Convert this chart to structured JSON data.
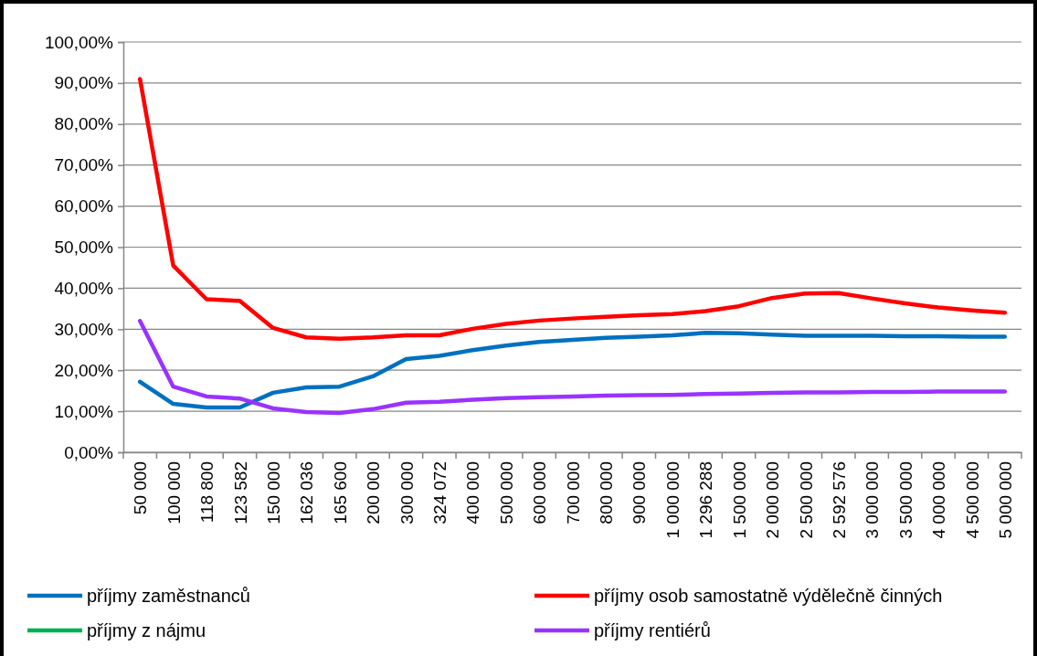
{
  "chart_data": {
    "type": "line",
    "categories": [
      "50 000",
      "100 000",
      "118 800",
      "123 582",
      "150 000",
      "162 036",
      "165 600",
      "200 000",
      "300 000",
      "324 072",
      "400 000",
      "500 000",
      "600 000",
      "700 000",
      "800 000",
      "900 000",
      "1 000 000",
      "1 296 288",
      "1 500 000",
      "2 000 000",
      "2 500 000",
      "2 592 576",
      "3 000 000",
      "3 500 000",
      "4 000 000",
      "4 500 000",
      "5 000 000"
    ],
    "series": [
      {
        "name": "příjmy zaměstnanců",
        "color": "#0070c0",
        "values": [
          17.2,
          11.8,
          10.9,
          10.9,
          14.5,
          15.8,
          16.0,
          18.5,
          22.7,
          23.5,
          24.9,
          26.0,
          26.9,
          27.4,
          27.9,
          28.2,
          28.5,
          29.1,
          29.0,
          28.7,
          28.4,
          28.4,
          28.4,
          28.3,
          28.3,
          28.2,
          28.2
        ]
      },
      {
        "name": "příjmy osob samostatně výdělečně činných",
        "color": "#ff0000",
        "values": [
          91.0,
          45.5,
          37.3,
          36.9,
          30.3,
          28.0,
          27.7,
          28.0,
          28.5,
          28.5,
          30.1,
          31.3,
          32.1,
          32.6,
          33.0,
          33.4,
          33.7,
          34.4,
          35.6,
          37.6,
          38.7,
          38.8,
          37.5,
          36.3,
          35.3,
          34.6,
          34.0
        ]
      },
      {
        "name": "příjmy z nájmu",
        "color": "#00b050",
        "values": [
          null,
          null,
          null,
          null,
          null,
          null,
          null,
          null,
          null,
          null,
          null,
          null,
          null,
          null,
          null,
          null,
          null,
          null,
          null,
          null,
          null,
          null,
          null,
          null,
          null,
          null,
          null
        ]
      },
      {
        "name": "příjmy rentiérů",
        "color": "#9933ff",
        "values": [
          32.0,
          16.0,
          13.6,
          13.1,
          10.7,
          9.8,
          9.6,
          10.5,
          12.1,
          12.3,
          12.8,
          13.2,
          13.4,
          13.6,
          13.8,
          13.9,
          14.0,
          14.2,
          14.3,
          14.5,
          14.6,
          14.6,
          14.7,
          14.7,
          14.8,
          14.8,
          14.8
        ]
      }
    ],
    "ylim": [
      0,
      100
    ],
    "yticks": [
      {
        "value": 0,
        "label": "0,00%"
      },
      {
        "value": 10,
        "label": "10,00%"
      },
      {
        "value": 20,
        "label": "20,00%"
      },
      {
        "value": 30,
        "label": "30,00%"
      },
      {
        "value": 40,
        "label": "40,00%"
      },
      {
        "value": 50,
        "label": "50,00%"
      },
      {
        "value": 60,
        "label": "60,00%"
      },
      {
        "value": 70,
        "label": "70,00%"
      },
      {
        "value": 80,
        "label": "80,00%"
      },
      {
        "value": 90,
        "label": "90,00%"
      },
      {
        "value": 100,
        "label": "100,00%"
      }
    ],
    "grid": "y",
    "legend": "bottom",
    "line_style": "solid"
  }
}
